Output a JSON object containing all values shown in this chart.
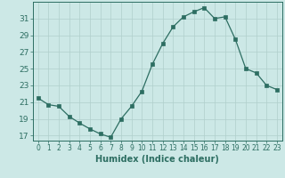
{
  "x": [
    0,
    1,
    2,
    3,
    4,
    5,
    6,
    7,
    8,
    9,
    10,
    11,
    12,
    13,
    14,
    15,
    16,
    17,
    18,
    19,
    20,
    21,
    22,
    23
  ],
  "y": [
    21.5,
    20.7,
    20.5,
    19.3,
    18.5,
    17.8,
    17.2,
    16.8,
    19.0,
    20.5,
    22.3,
    25.5,
    28.0,
    30.0,
    31.2,
    31.8,
    32.3,
    31.0,
    31.2,
    28.5,
    25.0,
    24.5,
    23.0,
    22.5
  ],
  "line_color": "#2d6e62",
  "marker_color": "#2d6e62",
  "bg_color": "#cce8e6",
  "grid_color": "#b0cfcc",
  "xlabel": "Humidex (Indice chaleur)",
  "xlim": [
    -0.5,
    23.5
  ],
  "ylim": [
    16.4,
    33.0
  ],
  "yticks": [
    17,
    19,
    21,
    23,
    25,
    27,
    29,
    31
  ],
  "xticks": [
    0,
    1,
    2,
    3,
    4,
    5,
    6,
    7,
    8,
    9,
    10,
    11,
    12,
    13,
    14,
    15,
    16,
    17,
    18,
    19,
    20,
    21,
    22,
    23
  ],
  "tick_color": "#2d6e62",
  "spine_color": "#2d6e62",
  "xlabel_fontsize": 7.0,
  "xlabel_fontweight": "bold",
  "ytick_fontsize": 6.5,
  "xtick_fontsize": 5.5
}
